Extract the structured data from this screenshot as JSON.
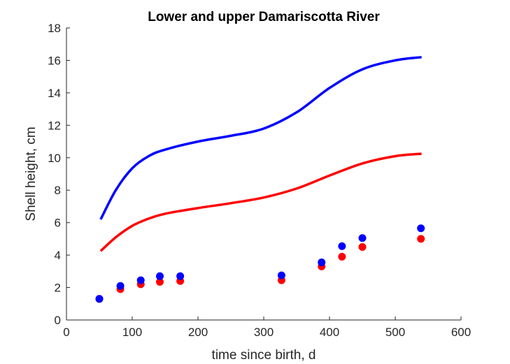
{
  "chart_data": {
    "type": "scatter",
    "title": "Lower and upper Damariscotta River",
    "xlabel": "time since birth, d",
    "ylabel": "Shell height, cm",
    "xlim": [
      0,
      600
    ],
    "ylim": [
      0,
      18
    ],
    "xticks": [
      "0",
      "100",
      "200",
      "300",
      "400",
      "500",
      "600"
    ],
    "yticks": [
      "0",
      "2",
      "4",
      "6",
      "8",
      "10",
      "12",
      "14",
      "16",
      "18"
    ],
    "grid": false,
    "legend": "none",
    "series": [
      {
        "kind": "points",
        "color": "#ff0000",
        "points": [
          [
            50,
            1.3
          ],
          [
            82,
            1.9
          ],
          [
            113,
            2.2
          ],
          [
            142,
            2.35
          ],
          [
            173,
            2.4
          ],
          [
            327,
            2.45
          ],
          [
            388,
            3.3
          ],
          [
            419,
            3.9
          ],
          [
            450,
            4.5
          ],
          [
            539,
            5.0
          ]
        ]
      },
      {
        "kind": "points",
        "color": "#0000ff",
        "points": [
          [
            50,
            1.3
          ],
          [
            82,
            2.1
          ],
          [
            113,
            2.45
          ],
          [
            142,
            2.7
          ],
          [
            173,
            2.7
          ],
          [
            327,
            2.75
          ],
          [
            388,
            3.55
          ],
          [
            419,
            4.55
          ],
          [
            450,
            5.05
          ],
          [
            539,
            5.65
          ]
        ]
      },
      {
        "kind": "line",
        "color": "#ff0000",
        "points": [
          [
            52,
            4.25
          ],
          [
            75,
            5.1
          ],
          [
            100,
            5.8
          ],
          [
            125,
            6.25
          ],
          [
            150,
            6.55
          ],
          [
            200,
            6.9
          ],
          [
            250,
            7.2
          ],
          [
            300,
            7.55
          ],
          [
            350,
            8.1
          ],
          [
            400,
            8.9
          ],
          [
            450,
            9.65
          ],
          [
            500,
            10.1
          ],
          [
            540,
            10.25
          ]
        ]
      },
      {
        "kind": "line",
        "color": "#0000ff",
        "points": [
          [
            52,
            6.2
          ],
          [
            75,
            8.0
          ],
          [
            100,
            9.35
          ],
          [
            125,
            10.1
          ],
          [
            150,
            10.5
          ],
          [
            200,
            11.0
          ],
          [
            250,
            11.35
          ],
          [
            300,
            11.8
          ],
          [
            350,
            12.8
          ],
          [
            400,
            14.3
          ],
          [
            450,
            15.45
          ],
          [
            500,
            16.0
          ],
          [
            540,
            16.2
          ]
        ]
      }
    ]
  }
}
